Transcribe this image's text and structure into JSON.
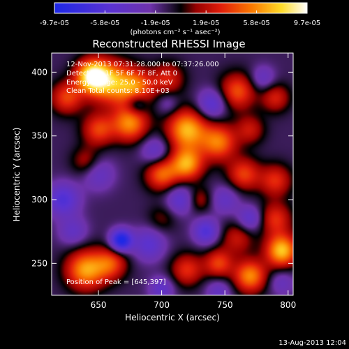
{
  "chart_data": {
    "type": "heatmap",
    "title": "Reconstructed RHESSI Image",
    "xlabel": "Heliocentric X (arcsec)",
    "ylabel": "Heliocentric Y (arcsec)",
    "xlim": [
      613,
      804
    ],
    "ylim": [
      225,
      415
    ],
    "xticks": [
      650,
      700,
      750,
      800
    ],
    "yticks": [
      250,
      300,
      350,
      400
    ],
    "colorbar": {
      "ticks": [
        "-9.7e-05",
        "-5.8e-05",
        "-1.9e-05",
        "1.9e-05",
        "5.8e-05",
        "9.7e-05"
      ],
      "unit_label": "(photons cm⁻² s⁻¹ asec⁻²)",
      "range": [
        -9.7e-05,
        9.7e-05
      ]
    },
    "annotations": [
      "12-Nov-2013 07:31:28.000 to 07:37:26.000",
      "Detectors: 1F 5F 6F 7F 8F, Att 0",
      "Energy Range: 25.0 - 50.0 keV",
      "Clean    Total counts: 8.10E+03"
    ],
    "peak_label": "Position of Peak = [645,397]",
    "blobs": [
      {
        "x": 660,
        "y": 392,
        "v": 7e-05,
        "s": 12
      },
      {
        "x": 680,
        "y": 388,
        "v": 6e-05,
        "s": 10
      },
      {
        "x": 645,
        "y": 397,
        "v": 9.7e-05,
        "s": 9
      },
      {
        "x": 625,
        "y": 380,
        "v": 5e-05,
        "s": 9
      },
      {
        "x": 705,
        "y": 395,
        "v": 4e-05,
        "s": 9
      },
      {
        "x": 760,
        "y": 385,
        "v": 5.5e-05,
        "s": 10
      },
      {
        "x": 790,
        "y": 380,
        "v": 4e-05,
        "s": 8
      },
      {
        "x": 675,
        "y": 360,
        "v": 7e-05,
        "s": 10
      },
      {
        "x": 650,
        "y": 355,
        "v": 5e-05,
        "s": 9
      },
      {
        "x": 720,
        "y": 355,
        "v": 8e-05,
        "s": 11
      },
      {
        "x": 745,
        "y": 345,
        "v": 6.5e-05,
        "s": 10
      },
      {
        "x": 770,
        "y": 355,
        "v": 3.5e-05,
        "s": 8
      },
      {
        "x": 640,
        "y": 330,
        "v": 3e-05,
        "s": 8
      },
      {
        "x": 700,
        "y": 320,
        "v": 6e-05,
        "s": 9
      },
      {
        "x": 720,
        "y": 328,
        "v": 7.5e-05,
        "s": 9
      },
      {
        "x": 765,
        "y": 320,
        "v": 5e-05,
        "s": 9
      },
      {
        "x": 790,
        "y": 315,
        "v": 4.5e-05,
        "s": 9
      },
      {
        "x": 790,
        "y": 285,
        "v": 4.5e-05,
        "s": 9
      },
      {
        "x": 795,
        "y": 260,
        "v": 8.5e-05,
        "s": 9
      },
      {
        "x": 760,
        "y": 270,
        "v": 3.5e-05,
        "s": 9
      },
      {
        "x": 700,
        "y": 285,
        "v": 2e-05,
        "s": 8
      },
      {
        "x": 640,
        "y": 245,
        "v": 7.5e-05,
        "s": 11
      },
      {
        "x": 660,
        "y": 250,
        "v": 5e-05,
        "s": 9
      },
      {
        "x": 720,
        "y": 245,
        "v": 4.5e-05,
        "s": 9
      },
      {
        "x": 745,
        "y": 250,
        "v": 5e-05,
        "s": 8
      },
      {
        "x": 770,
        "y": 240,
        "v": 7e-05,
        "s": 9
      },
      {
        "x": 730,
        "y": 300,
        "v": 3e-05,
        "s": 7
      },
      {
        "x": 622,
        "y": 300,
        "v": -5e-05,
        "s": 9
      },
      {
        "x": 650,
        "y": 320,
        "v": -3e-05,
        "s": 9
      },
      {
        "x": 668,
        "y": 268,
        "v": -9e-05,
        "s": 6
      },
      {
        "x": 690,
        "y": 265,
        "v": -4e-05,
        "s": 9
      },
      {
        "x": 715,
        "y": 300,
        "v": -4e-05,
        "s": 8
      },
      {
        "x": 695,
        "y": 338,
        "v": -3.5e-05,
        "s": 8
      },
      {
        "x": 680,
        "y": 375,
        "v": -4e-05,
        "s": 6
      },
      {
        "x": 740,
        "y": 375,
        "v": -4.5e-05,
        "s": 8
      },
      {
        "x": 780,
        "y": 395,
        "v": -3e-05,
        "s": 7
      },
      {
        "x": 750,
        "y": 300,
        "v": -3e-05,
        "s": 8
      },
      {
        "x": 735,
        "y": 275,
        "v": -5e-05,
        "s": 7
      },
      {
        "x": 770,
        "y": 285,
        "v": -4e-05,
        "s": 7
      },
      {
        "x": 700,
        "y": 230,
        "v": -3.5e-05,
        "s": 7
      },
      {
        "x": 745,
        "y": 228,
        "v": -3e-05,
        "s": 7
      },
      {
        "x": 795,
        "y": 235,
        "v": -2.5e-05,
        "s": 7
      },
      {
        "x": 630,
        "y": 275,
        "v": -3e-05,
        "s": 8
      },
      {
        "x": 705,
        "y": 375,
        "v": -2e-05,
        "s": 6
      }
    ]
  },
  "footer": {
    "date": "13-Aug-2013 12:04"
  }
}
